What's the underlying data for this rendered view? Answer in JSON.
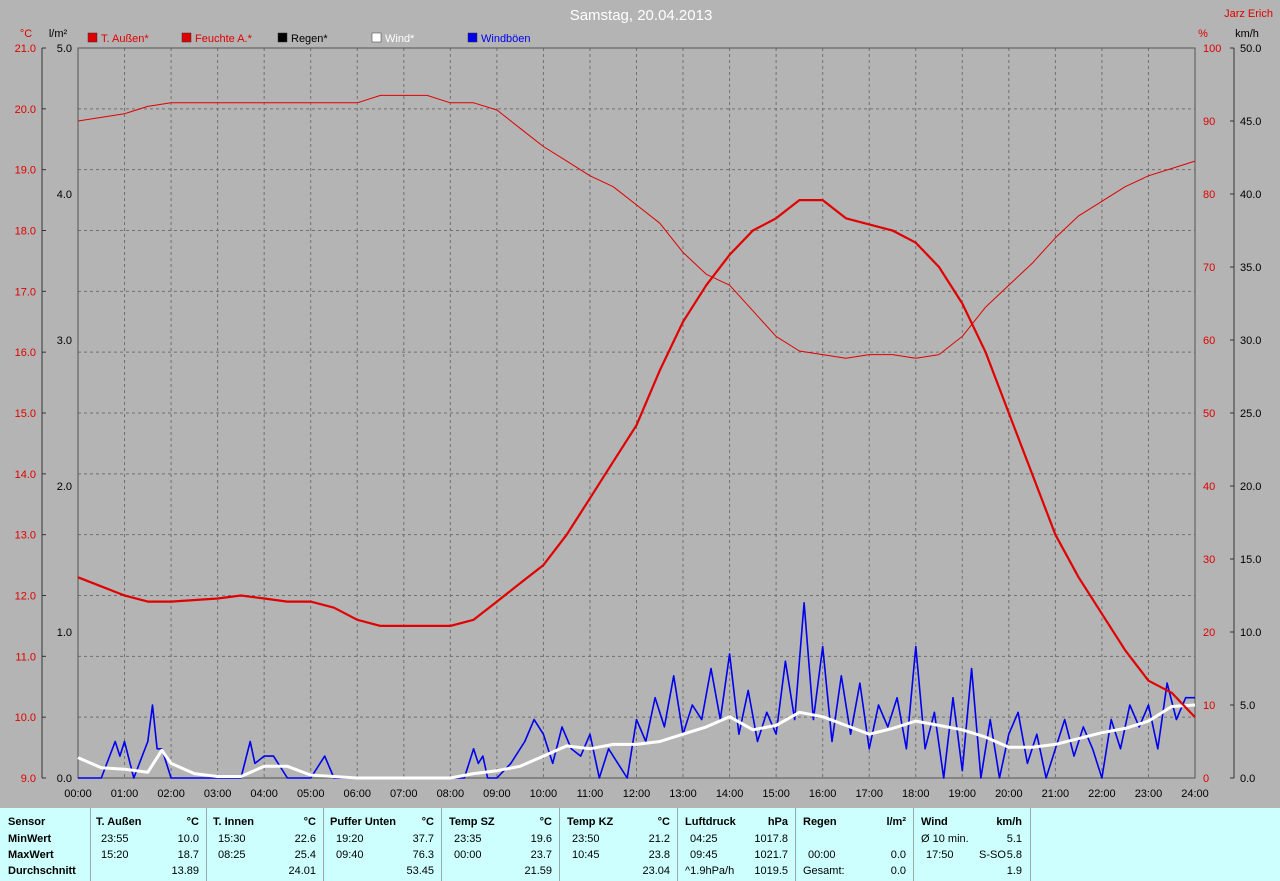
{
  "title": "Samstag, 20.04.2013",
  "author": "Jarz Erich",
  "axes": {
    "left1_unit": "°C",
    "left2_unit": "l/m²",
    "right1_unit": "%",
    "right2_unit": "km/h",
    "temp_ticks": [
      "21.0",
      "20.0",
      "19.0",
      "18.0",
      "17.0",
      "16.0",
      "15.0",
      "14.0",
      "13.0",
      "12.0",
      "11.0",
      "10.0",
      "9.0"
    ],
    "rain_ticks": [
      "5.0",
      "4.0",
      "3.0",
      "2.0",
      "1.0",
      "0.0"
    ],
    "hum_ticks": [
      "100",
      "90",
      "80",
      "70",
      "60",
      "50",
      "40",
      "30",
      "20",
      "10",
      "0"
    ],
    "wind_ticks": [
      "50.0",
      "45.0",
      "40.0",
      "35.0",
      "30.0",
      "25.0",
      "20.0",
      "15.0",
      "10.0",
      "5.0",
      "0.0"
    ],
    "time_ticks": [
      "00:00",
      "01:00",
      "02:00",
      "03:00",
      "04:00",
      "05:00",
      "06:00",
      "07:00",
      "08:00",
      "09:00",
      "10:00",
      "11:00",
      "12:00",
      "13:00",
      "14:00",
      "15:00",
      "16:00",
      "17:00",
      "18:00",
      "19:00",
      "20:00",
      "21:00",
      "22:00",
      "23:00",
      "24:00"
    ]
  },
  "colors": {
    "background": "#b4b4b4",
    "temp": "#e00000",
    "humidity": "#e00000",
    "wind": "#ffffff",
    "gust": "#0000ee",
    "table_bg": "#ccfffd",
    "label_red": "#e00000"
  },
  "chart_data": {
    "type": "line",
    "title": "Samstag, 20.04.2013",
    "xlabel": "",
    "x_range": [
      "00:00",
      "24:00"
    ],
    "legend": [
      {
        "name": "T. Außen*",
        "color": "#e00000"
      },
      {
        "name": "Feuchte A.*",
        "color": "#e00000"
      },
      {
        "name": "Regen*",
        "color": "#000000"
      },
      {
        "name": "Wind*",
        "color": "#ffffff"
      },
      {
        "name": "Windböen",
        "color": "#0000ee"
      }
    ],
    "ylim_temp": [
      9.0,
      21.0
    ],
    "ylim_rain": [
      0.0,
      5.0
    ],
    "ylim_humidity": [
      0,
      100
    ],
    "ylim_wind": [
      0.0,
      50.0
    ],
    "grid": true,
    "series": [
      {
        "name": "T. Außen*",
        "axis": "temp",
        "unit": "°C",
        "x_hours": [
          0,
          0.33,
          1,
          1.5,
          2,
          3,
          3.5,
          4,
          4.5,
          5,
          5.5,
          6,
          6.5,
          7,
          7.5,
          8,
          8.5,
          9,
          9.5,
          10,
          10.5,
          11,
          11.5,
          12,
          12.5,
          13,
          13.5,
          14,
          14.5,
          15,
          15.5,
          16,
          16.5,
          17,
          17.5,
          18,
          18.5,
          19,
          19.5,
          20,
          20.5,
          21,
          21.5,
          22,
          22.5,
          23,
          23.5,
          24
        ],
        "values": [
          12.3,
          12.2,
          12.0,
          11.9,
          11.9,
          11.95,
          12.0,
          11.95,
          11.9,
          11.9,
          11.8,
          11.6,
          11.5,
          11.5,
          11.5,
          11.5,
          11.6,
          11.9,
          12.2,
          12.5,
          13.0,
          13.6,
          14.2,
          14.8,
          15.7,
          16.5,
          17.1,
          17.6,
          18.0,
          18.2,
          18.5,
          18.5,
          18.2,
          18.1,
          18.0,
          17.8,
          17.4,
          16.8,
          16.0,
          15.0,
          14.0,
          13.0,
          12.3,
          11.7,
          11.1,
          10.6,
          10.4,
          10.0
        ]
      },
      {
        "name": "Feuchte A.*",
        "axis": "humidity",
        "unit": "%",
        "x_hours": [
          0,
          0.5,
          1,
          1.5,
          2,
          3,
          4,
          5,
          6,
          6.5,
          7,
          7.5,
          8,
          8.5,
          9,
          9.5,
          10,
          10.5,
          11,
          11.5,
          12,
          12.5,
          13,
          13.5,
          14,
          14.5,
          15,
          15.5,
          16,
          16.5,
          17,
          17.5,
          18,
          18.5,
          19,
          19.5,
          20,
          20.5,
          21,
          21.5,
          22,
          22.5,
          23,
          23.5,
          24
        ],
        "values": [
          90,
          90.5,
          91,
          92,
          92.5,
          92.5,
          92.5,
          92.5,
          92.5,
          93.5,
          93.5,
          93.5,
          92.5,
          92.5,
          91.5,
          89,
          86.5,
          84.5,
          82.5,
          81,
          78.5,
          76,
          72,
          69,
          67.5,
          64,
          60.5,
          58.5,
          58,
          57.5,
          58,
          58,
          57.5,
          58,
          60.5,
          64.5,
          67.5,
          70.5,
          74,
          77,
          79,
          81,
          82.5,
          83.5,
          84.5
        ]
      },
      {
        "name": "Wind*",
        "axis": "wind",
        "unit": "km/h",
        "x_hours": [
          0,
          0.5,
          1,
          1.5,
          1.8,
          2,
          2.5,
          3,
          3.5,
          4,
          4.5,
          5,
          5.5,
          6,
          7,
          8,
          8.5,
          9,
          9.5,
          10,
          10.5,
          11,
          11.5,
          12,
          12.5,
          13,
          13.5,
          14,
          14.5,
          15,
          15.5,
          16,
          16.5,
          17,
          17.5,
          18,
          18.5,
          19,
          19.5,
          20,
          20.5,
          21,
          21.5,
          22,
          22.5,
          23,
          23.5,
          24
        ],
        "values": [
          1.4,
          0.7,
          0.6,
          0.4,
          1.9,
          1.0,
          0.3,
          0.1,
          0.1,
          0.8,
          0.8,
          0.2,
          0.1,
          0.0,
          0.0,
          0.0,
          0.3,
          0.5,
          0.8,
          1.5,
          2.2,
          2.0,
          2.3,
          2.3,
          2.5,
          3.0,
          3.5,
          4.2,
          3.3,
          3.6,
          4.5,
          4.2,
          3.6,
          3.0,
          3.4,
          3.9,
          3.6,
          3.3,
          2.8,
          2.1,
          2.1,
          2.3,
          2.7,
          3.1,
          3.4,
          3.9,
          4.9,
          5.0
        ]
      },
      {
        "name": "Windböen",
        "axis": "wind",
        "unit": "km/h",
        "x_hours": [
          0,
          0.5,
          0.8,
          0.9,
          1.0,
          1.2,
          1.5,
          1.6,
          1.7,
          1.8,
          2.0,
          3.5,
          3.7,
          3.8,
          4.0,
          4.2,
          4.5,
          5.0,
          5.3,
          5.5,
          6,
          7,
          8,
          8.3,
          8.5,
          8.6,
          8.7,
          8.8,
          9.0,
          9.3,
          9.6,
          9.8,
          10.0,
          10.2,
          10.4,
          10.6,
          10.8,
          11.0,
          11.2,
          11.4,
          11.6,
          11.8,
          12.0,
          12.2,
          12.4,
          12.6,
          12.8,
          13.0,
          13.2,
          13.4,
          13.6,
          13.8,
          14.0,
          14.2,
          14.4,
          14.6,
          14.8,
          15.0,
          15.2,
          15.4,
          15.6,
          15.8,
          16.0,
          16.2,
          16.4,
          16.6,
          16.8,
          17.0,
          17.2,
          17.4,
          17.6,
          17.8,
          18.0,
          18.2,
          18.4,
          18.6,
          18.8,
          19.0,
          19.2,
          19.4,
          19.6,
          19.8,
          20.0,
          20.2,
          20.4,
          20.6,
          20.8,
          21.0,
          21.2,
          21.4,
          21.6,
          21.8,
          22.0,
          22.2,
          22.4,
          22.6,
          22.8,
          23.0,
          23.2,
          23.4,
          23.6,
          23.8,
          24.0
        ],
        "values": [
          0,
          0,
          2.5,
          1.5,
          2.5,
          0,
          2.5,
          5,
          2,
          2,
          0,
          0,
          2.5,
          1,
          1.5,
          1.5,
          0,
          0,
          1.5,
          0,
          0,
          0,
          0,
          0,
          2,
          1,
          1.5,
          0,
          0,
          1,
          2.5,
          4,
          3,
          1,
          3.5,
          2,
          1.5,
          3,
          0,
          2,
          1,
          0,
          4,
          2.5,
          5.5,
          3.5,
          7,
          3,
          5,
          4,
          7.5,
          4,
          8.5,
          3,
          6,
          2.5,
          4.5,
          3,
          8,
          4,
          12,
          4,
          9,
          2.5,
          7,
          3,
          6.5,
          2,
          5,
          3.5,
          5.5,
          2,
          9,
          2,
          4.5,
          0,
          5.5,
          0.5,
          7.5,
          0,
          4,
          0,
          3,
          4.5,
          1,
          3,
          0,
          2,
          4,
          1.5,
          3.5,
          2,
          0,
          4,
          2,
          5,
          3.5,
          5,
          2,
          6.5,
          4,
          5.5,
          5.5
        ]
      }
    ]
  },
  "table": {
    "row_labels": {
      "sensor": "Sensor",
      "min": "MinWert",
      "max": "MaxWert",
      "avg": "Durchschnitt"
    },
    "t_aussen": {
      "name": "T. Außen",
      "unit": "°C",
      "min_time": "23:55",
      "min_val": "10.0",
      "max_time": "15:20",
      "max_val": "18.7",
      "avg": "13.89"
    },
    "t_innen": {
      "name": "T. Innen",
      "unit": "°C",
      "min_time": "15:30",
      "min_val": "22.6",
      "max_time": "08:25",
      "max_val": "25.4",
      "avg": "24.01"
    },
    "puffer": {
      "name": "Puffer Unten",
      "unit": "°C",
      "min_time": "19:20",
      "min_val": "37.7",
      "max_time": "09:40",
      "max_val": "76.3",
      "avg": "53.45"
    },
    "temp_sz": {
      "name": "Temp SZ",
      "unit": "°C",
      "min_time": "23:35",
      "min_val": "19.6",
      "max_time": "00:00",
      "max_val": "23.7",
      "avg": "21.59"
    },
    "temp_kz": {
      "name": "Temp KZ",
      "unit": "°C",
      "min_time": "23:50",
      "min_val": "21.2",
      "max_time": "10:45",
      "max_val": "23.8",
      "avg": "23.04"
    },
    "luftdruck": {
      "name": "Luftdruck",
      "unit": "hPa",
      "min_time": "04:25",
      "min_val": "1017.8",
      "max_time": "09:45",
      "max_val": "1021.7",
      "avg_label": "^1.9hPa/h",
      "avg": "1019.5"
    },
    "regen": {
      "name": "Regen",
      "unit": "l/m²",
      "max_time": "00:00",
      "max_val": "0.0",
      "avg_label": "Gesamt:",
      "avg": "0.0"
    },
    "wind": {
      "name": "Wind",
      "unit": "km/h",
      "min_label": "Ø 10 min.",
      "min_val": "5.1",
      "max_time": "17:50",
      "max_dir": "S-SO",
      "max_val": "5.8",
      "avg": "1.9"
    }
  }
}
